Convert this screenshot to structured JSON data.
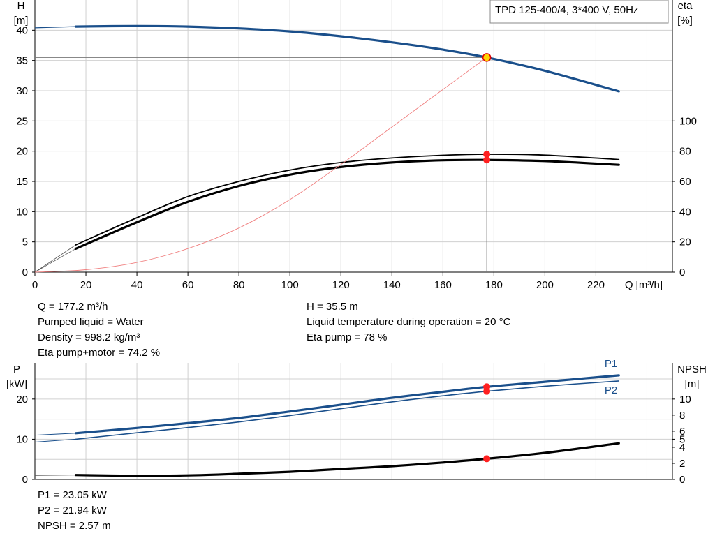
{
  "chart_data": [
    {
      "type": "line",
      "title": "TPD 125-400/4, 3*400 V, 50Hz",
      "xlabel": "Q [m³/h]",
      "ylabel_left": [
        "H",
        "[m]"
      ],
      "ylabel_right": [
        "eta",
        "[%]"
      ],
      "xlim": [
        0,
        250
      ],
      "xticks": [
        0,
        20,
        40,
        60,
        80,
        100,
        120,
        140,
        160,
        180,
        200,
        220
      ],
      "ylim_left": [
        0,
        45
      ],
      "yticks_left": [
        0,
        5,
        10,
        15,
        20,
        25,
        30,
        35,
        40
      ],
      "ylim_right": [
        0,
        180
      ],
      "yticks_right": [
        0,
        20,
        40,
        60,
        80,
        100
      ],
      "grid": true,
      "operating_point": {
        "q": 177.2,
        "h": 35.5,
        "eta_pump": 78,
        "eta_total": 74.2
      },
      "series": [
        {
          "color": "#1a4f8b",
          "axis": "left",
          "width": 3.2,
          "x": [
            0,
            16,
            40,
            60,
            80,
            100,
            120,
            140,
            160,
            177.2,
            200,
            229
          ],
          "y": [
            40.4,
            40.6,
            40.7,
            40.6,
            40.3,
            39.8,
            39.0,
            38.0,
            36.8,
            35.5,
            33.3,
            29.9
          ]
        },
        {
          "color": "#000000",
          "axis": "right",
          "width": 1.8,
          "x": [
            0,
            16,
            40,
            60,
            80,
            100,
            120,
            140,
            160,
            177.2,
            200,
            229
          ],
          "y": [
            0,
            18,
            36,
            50,
            60,
            67.5,
            72.5,
            75.5,
            77.3,
            78,
            77.4,
            74.5
          ]
        },
        {
          "color": "#000000",
          "axis": "right",
          "width": 3.2,
          "x": [
            0,
            16,
            40,
            60,
            80,
            100,
            120,
            140,
            160,
            177.2,
            200,
            229
          ],
          "y": [
            0,
            15.5,
            33,
            46.5,
            57,
            64.5,
            69.5,
            72.5,
            74,
            74.2,
            73.5,
            71
          ]
        },
        {
          "color": "#f08080",
          "axis": "left",
          "width": 0.9,
          "x": [
            0,
            20,
            40,
            60,
            80,
            100,
            120,
            140,
            160,
            177.2
          ],
          "y": [
            0,
            0.4,
            1.6,
            3.9,
            7.3,
            12.0,
            17.8,
            24.0,
            30.2,
            35.5
          ]
        }
      ]
    },
    {
      "type": "line",
      "ylabel_left": [
        "P",
        "[kW]"
      ],
      "ylabel_right": [
        "NPSH",
        "[m]"
      ],
      "xlim": [
        0,
        250
      ],
      "ylim_left": [
        0,
        29
      ],
      "yticks_left": [
        0,
        10,
        20
      ],
      "ylim_right": [
        0,
        14.5
      ],
      "yticks_right": [
        0,
        2,
        4,
        5,
        6,
        8,
        10
      ],
      "grid": true,
      "series": [
        {
          "name": "P1",
          "color": "#1a4f8b",
          "axis": "left",
          "width": 3.2,
          "x": [
            0,
            16,
            40,
            60,
            80,
            100,
            120,
            140,
            160,
            177.2,
            200,
            229
          ],
          "y": [
            11.0,
            11.5,
            12.8,
            14.0,
            15.3,
            16.9,
            18.6,
            20.3,
            21.8,
            23.05,
            24.3,
            25.9
          ]
        },
        {
          "name": "P2",
          "color": "#1a4f8b",
          "axis": "left",
          "width": 1.6,
          "x": [
            0,
            16,
            40,
            60,
            80,
            100,
            120,
            140,
            160,
            177.2,
            200,
            229
          ],
          "y": [
            9.3,
            10.0,
            11.6,
            12.9,
            14.3,
            15.9,
            17.6,
            19.3,
            20.8,
            21.94,
            23.2,
            24.5
          ]
        },
        {
          "color": "#000000",
          "axis": "right",
          "width": 3.2,
          "x": [
            0,
            16,
            40,
            60,
            80,
            100,
            120,
            140,
            160,
            177.2,
            200,
            229
          ],
          "y": [
            0.5,
            0.55,
            0.45,
            0.5,
            0.7,
            0.95,
            1.3,
            1.65,
            2.1,
            2.57,
            3.3,
            4.5
          ]
        }
      ],
      "operating_points": {
        "p1": 23.05,
        "p2": 21.94,
        "npsh": 2.57
      }
    }
  ],
  "info_top_left": [
    "Q = 177.2 m³/h",
    "Pumped liquid = Water",
    "Density = 998.2 kg/m³",
    "Eta pump+motor = 74.2 %"
  ],
  "info_top_right": [
    "H = 35.5 m",
    "Liquid temperature during operation = 20 °C",
    "Eta pump = 78 %"
  ],
  "info_bottom": [
    "P1 = 23.05 kW",
    "P2 = 21.94 kW",
    "NPSH = 2.57 m"
  ]
}
